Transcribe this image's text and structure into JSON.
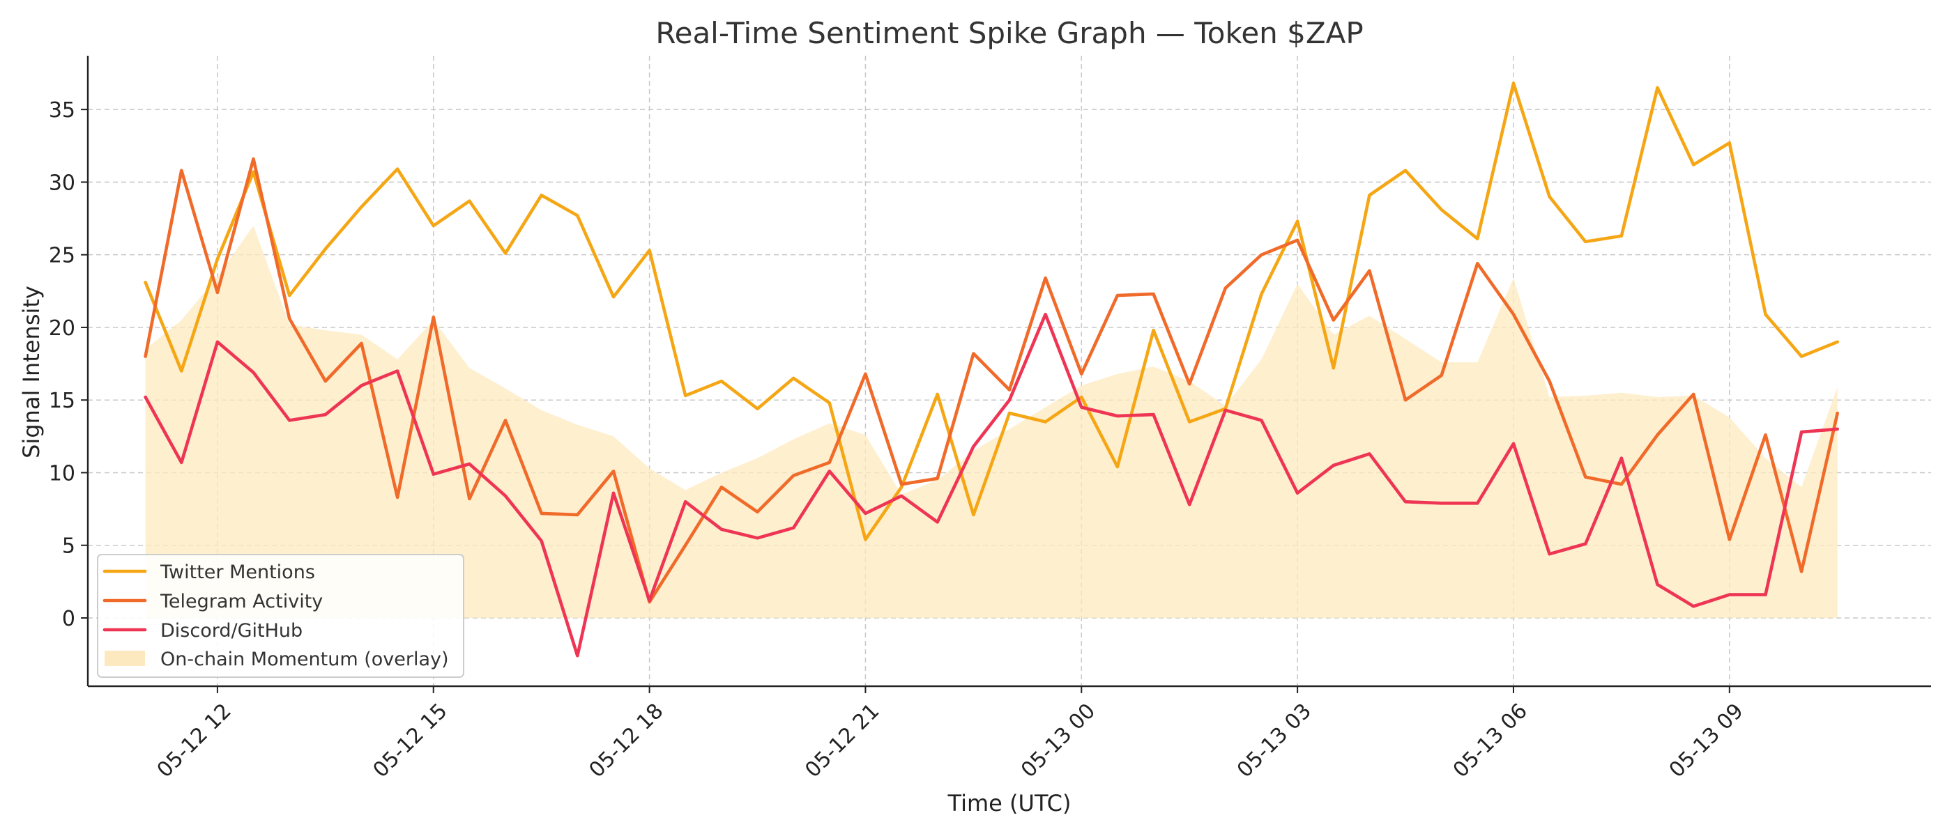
{
  "chart_data": {
    "type": "line",
    "title": "Real-Time Sentiment Spike Graph — Token $ZAP",
    "xlabel": "Time (UTC)",
    "ylabel": "Signal Intensity",
    "x_start": "05-12 11:00",
    "x_step_minutes": 30,
    "x_tick_labels": [
      "05-12 12",
      "05-12 15",
      "05-12 18",
      "05-12 21",
      "05-13 00",
      "05-13 03",
      "05-13 06",
      "05-13 09"
    ],
    "x_tick_hours": [
      12,
      15,
      18,
      21,
      24,
      27,
      30,
      33
    ],
    "y_ticks": [
      0,
      5,
      10,
      15,
      20,
      25,
      30,
      35
    ],
    "ylim": [
      -4.7,
      38.7
    ],
    "xlim_hours": [
      10.2,
      35.8
    ],
    "grid": true,
    "legend_position": "lower-left",
    "series": [
      {
        "name": "Twitter Mentions",
        "color": "#f5a614",
        "kind": "line",
        "values": [
          23.1,
          17.0,
          24.7,
          30.7,
          22.2,
          25.4,
          28.3,
          30.9,
          27.0,
          28.7,
          25.1,
          29.1,
          27.7,
          22.1,
          25.3,
          15.3,
          16.3,
          14.4,
          16.5,
          14.8,
          5.4,
          9.0,
          15.4,
          7.1,
          14.1,
          13.5,
          15.2,
          10.4,
          19.8,
          13.5,
          14.4,
          22.3,
          27.3,
          17.2,
          29.1,
          30.8,
          28.1,
          26.1,
          36.8,
          29.0,
          25.9,
          26.3,
          36.5,
          31.2,
          32.7,
          20.9,
          18.0,
          19.0
        ]
      },
      {
        "name": "Telegram Activity",
        "color": "#f06a2a",
        "kind": "line",
        "values": [
          18.0,
          30.8,
          22.4,
          31.6,
          20.6,
          16.3,
          18.9,
          8.3,
          20.7,
          8.2,
          13.6,
          7.2,
          7.1,
          10.1,
          1.1,
          5.0,
          9.0,
          7.3,
          9.8,
          10.7,
          16.8,
          9.2,
          9.6,
          18.2,
          15.7,
          23.4,
          16.8,
          22.2,
          22.3,
          16.1,
          22.7,
          25.0,
          26.0,
          20.5,
          23.9,
          15.0,
          16.7,
          24.4,
          20.9,
          16.3,
          9.7,
          9.2,
          12.6,
          15.4,
          5.4,
          12.6,
          3.2,
          14.1
        ]
      },
      {
        "name": "Discord/GitHub",
        "color": "#ee3554",
        "kind": "line",
        "values": [
          15.2,
          10.7,
          19.0,
          16.9,
          13.6,
          14.0,
          16.0,
          17.0,
          9.9,
          10.6,
          8.4,
          5.3,
          -2.6,
          8.6,
          1.2,
          8.0,
          6.1,
          5.5,
          6.2,
          10.1,
          7.2,
          8.4,
          6.6,
          11.8,
          15.0,
          20.9,
          14.5,
          13.9,
          14.0,
          7.8,
          14.3,
          13.6,
          8.6,
          10.5,
          11.3,
          8.0,
          7.9,
          7.9,
          12.0,
          4.4,
          5.1,
          11.0,
          2.3,
          0.8,
          1.6,
          1.6,
          12.8,
          13.0
        ]
      },
      {
        "name": "On-chain Momentum (overlay)",
        "color": "#fde9bf",
        "kind": "area",
        "values": [
          18.5,
          20.5,
          23.5,
          27.0,
          20.2,
          19.8,
          19.5,
          17.8,
          20.5,
          17.2,
          15.8,
          14.3,
          13.3,
          12.5,
          10.3,
          8.8,
          10.0,
          11.0,
          12.3,
          13.4,
          12.6,
          8.5,
          9.5,
          11.5,
          13.0,
          14.5,
          16.0,
          16.8,
          17.3,
          16.3,
          14.6,
          17.8,
          23.0,
          19.5,
          20.8,
          19.2,
          17.6,
          17.6,
          23.4,
          15.2,
          15.3,
          15.5,
          15.2,
          15.3,
          13.8,
          11.0,
          9.0,
          15.9
        ]
      }
    ]
  }
}
